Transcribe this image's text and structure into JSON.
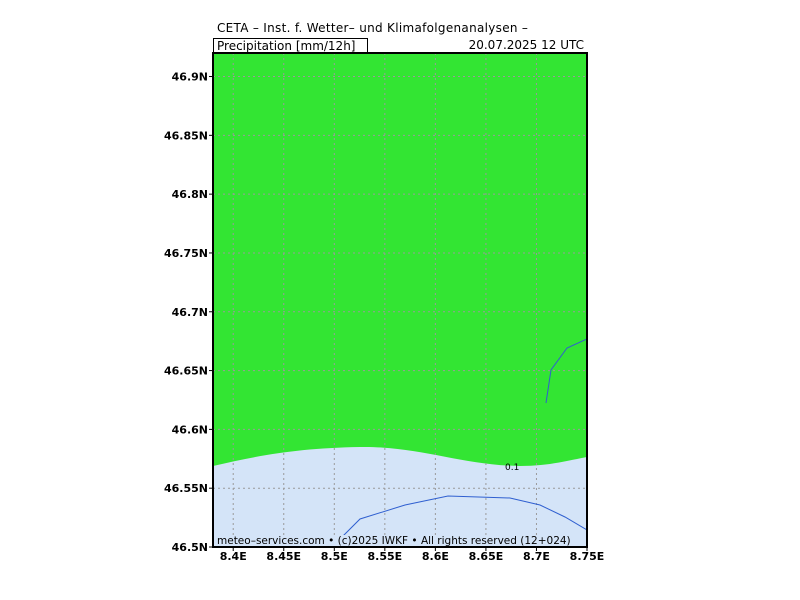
{
  "header": {
    "title": "CETA – Inst. f. Wetter– und Klimafolgenanalysen –",
    "variable": "Precipitation [mm/12h]",
    "datetime": "20.07.2025 12 UTC"
  },
  "map": {
    "lon_range": [
      8.38,
      8.75
    ],
    "lat_range": [
      46.5,
      46.92
    ],
    "lat_ticks": [
      "46.9N",
      "46.85N",
      "46.8N",
      "46.75N",
      "46.7N",
      "46.65N",
      "46.6N",
      "46.55N",
      "46.5N"
    ],
    "lat_tick_values": [
      46.9,
      46.85,
      46.8,
      46.75,
      46.7,
      46.65,
      46.6,
      46.55,
      46.5
    ],
    "lon_ticks": [
      "8.4E",
      "8.45E",
      "8.5E",
      "8.55E",
      "8.6E",
      "8.65E",
      "8.7E",
      "8.75E"
    ],
    "lon_tick_values": [
      8.4,
      8.45,
      8.5,
      8.55,
      8.6,
      8.65,
      8.7,
      8.75
    ],
    "grid": true,
    "colors": {
      "precip_fill": "#33e533",
      "no_precip_fill": "#d4e4f8",
      "border_line": "#2f5fd0",
      "grid": "#9a9a9a"
    },
    "contour_label": "0.1"
  },
  "footer": {
    "credit": "meteo–services.com • (c)2025 IWKF • All rights reserved (12+024)"
  }
}
